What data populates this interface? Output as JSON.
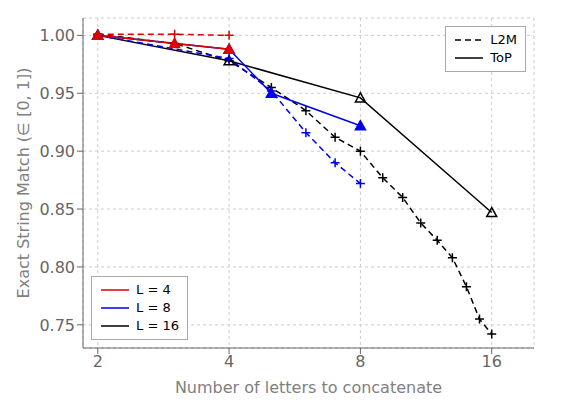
{
  "chart_data": {
    "type": "line",
    "xlabel": "Number of letters to concatenate",
    "ylabel": "Exact String Match (∈ [0, 1])",
    "log": "x",
    "grid": true,
    "xlim": [
      1.85,
      20
    ],
    "xticks": [
      2,
      4,
      8,
      16
    ],
    "ylim": [
      0.73,
      1.015
    ],
    "yticks": [
      0.75,
      {
        "value": 0.8,
        "label": "0.80"
      },
      0.85,
      {
        "value": 0.9,
        "label": "0.90"
      },
      0.95,
      {
        "value": 1.0,
        "label": "1.00"
      }
    ],
    "series": [
      {
        "color": "#dd0000",
        "line_style": "dashed",
        "marker": "plus",
        "x": [
          2,
          3,
          4
        ],
        "values": [
          1.001,
          1.001,
          1.0
        ]
      },
      {
        "color": "#dd0000",
        "line_style": "solid",
        "marker": "triangle",
        "x": [
          2,
          3,
          4
        ],
        "values": [
          1.0,
          0.993,
          0.988
        ]
      },
      {
        "color": "#0000ee",
        "line_style": "dashed",
        "marker": "plus",
        "x": [
          2,
          4,
          5,
          6,
          7,
          8
        ],
        "values": [
          1.0,
          0.98,
          0.952,
          0.916,
          0.89,
          0.872
        ]
      },
      {
        "color": "#0000ee",
        "line_style": "solid",
        "marker": "triangle",
        "x": [
          2,
          4,
          5,
          8
        ],
        "values": [
          1.0,
          0.988,
          0.95,
          0.922
        ]
      },
      {
        "color": "#000000",
        "line_style": "dashed",
        "marker": "plus",
        "x": [
          2,
          3,
          4,
          5,
          6,
          7,
          8,
          9,
          10,
          11,
          12,
          13,
          14,
          15,
          16
        ],
        "values": [
          1.001,
          0.993,
          0.978,
          0.955,
          0.935,
          0.912,
          0.9,
          0.877,
          0.86,
          0.838,
          0.823,
          0.808,
          0.783,
          0.755,
          0.742
        ]
      },
      {
        "color": "#000000",
        "line_style": "solid",
        "marker": "open_triangle",
        "x": [
          2,
          4,
          8,
          16
        ],
        "values": [
          1.0,
          0.978,
          0.946,
          0.847
        ]
      }
    ],
    "legends": [
      {
        "legend": "upper right",
        "entries": [
          {
            "name": "L2M",
            "color": "#000000",
            "line_style": "dashed"
          },
          {
            "name": "ToP",
            "color": "#000000",
            "line_style": "solid"
          }
        ]
      },
      {
        "legend": "lower left",
        "entries": [
          {
            "name": "L = 4",
            "color": "#dd0000",
            "line_style": "solid"
          },
          {
            "name": "L = 8",
            "color": "#0000ee",
            "line_style": "solid"
          },
          {
            "name": "L = 16",
            "color": "#000000",
            "line_style": "solid"
          }
        ]
      }
    ]
  }
}
